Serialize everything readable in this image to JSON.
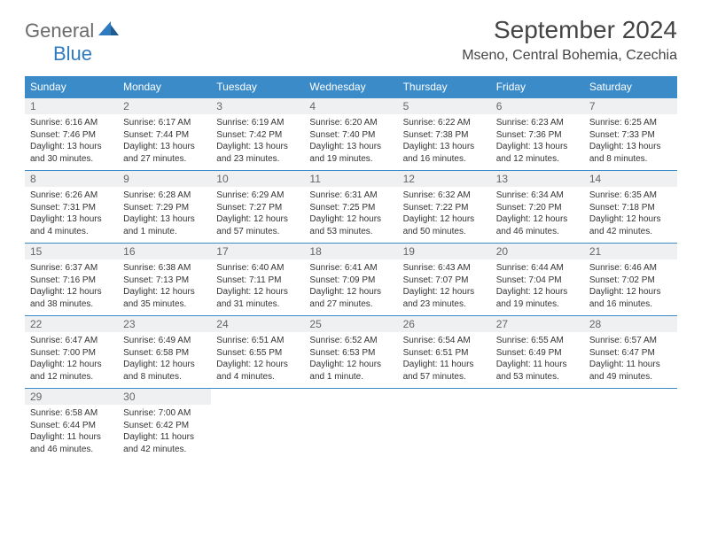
{
  "brand": {
    "part1": "General",
    "part2": "Blue"
  },
  "title": "September 2024",
  "location": "Mseno, Central Bohemia, Czechia",
  "colors": {
    "header_bg": "#3b8bc9",
    "header_text": "#ffffff",
    "daynum_bg": "#eef0f1",
    "border": "#3b8bc9",
    "brand_gray": "#6b6b6b",
    "brand_blue": "#2f7bbf"
  },
  "day_names": [
    "Sunday",
    "Monday",
    "Tuesday",
    "Wednesday",
    "Thursday",
    "Friday",
    "Saturday"
  ],
  "weeks": [
    [
      {
        "n": "1",
        "sunrise": "Sunrise: 6:16 AM",
        "sunset": "Sunset: 7:46 PM",
        "daylight": "Daylight: 13 hours and 30 minutes."
      },
      {
        "n": "2",
        "sunrise": "Sunrise: 6:17 AM",
        "sunset": "Sunset: 7:44 PM",
        "daylight": "Daylight: 13 hours and 27 minutes."
      },
      {
        "n": "3",
        "sunrise": "Sunrise: 6:19 AM",
        "sunset": "Sunset: 7:42 PM",
        "daylight": "Daylight: 13 hours and 23 minutes."
      },
      {
        "n": "4",
        "sunrise": "Sunrise: 6:20 AM",
        "sunset": "Sunset: 7:40 PM",
        "daylight": "Daylight: 13 hours and 19 minutes."
      },
      {
        "n": "5",
        "sunrise": "Sunrise: 6:22 AM",
        "sunset": "Sunset: 7:38 PM",
        "daylight": "Daylight: 13 hours and 16 minutes."
      },
      {
        "n": "6",
        "sunrise": "Sunrise: 6:23 AM",
        "sunset": "Sunset: 7:36 PM",
        "daylight": "Daylight: 13 hours and 12 minutes."
      },
      {
        "n": "7",
        "sunrise": "Sunrise: 6:25 AM",
        "sunset": "Sunset: 7:33 PM",
        "daylight": "Daylight: 13 hours and 8 minutes."
      }
    ],
    [
      {
        "n": "8",
        "sunrise": "Sunrise: 6:26 AM",
        "sunset": "Sunset: 7:31 PM",
        "daylight": "Daylight: 13 hours and 4 minutes."
      },
      {
        "n": "9",
        "sunrise": "Sunrise: 6:28 AM",
        "sunset": "Sunset: 7:29 PM",
        "daylight": "Daylight: 13 hours and 1 minute."
      },
      {
        "n": "10",
        "sunrise": "Sunrise: 6:29 AM",
        "sunset": "Sunset: 7:27 PM",
        "daylight": "Daylight: 12 hours and 57 minutes."
      },
      {
        "n": "11",
        "sunrise": "Sunrise: 6:31 AM",
        "sunset": "Sunset: 7:25 PM",
        "daylight": "Daylight: 12 hours and 53 minutes."
      },
      {
        "n": "12",
        "sunrise": "Sunrise: 6:32 AM",
        "sunset": "Sunset: 7:22 PM",
        "daylight": "Daylight: 12 hours and 50 minutes."
      },
      {
        "n": "13",
        "sunrise": "Sunrise: 6:34 AM",
        "sunset": "Sunset: 7:20 PM",
        "daylight": "Daylight: 12 hours and 46 minutes."
      },
      {
        "n": "14",
        "sunrise": "Sunrise: 6:35 AM",
        "sunset": "Sunset: 7:18 PM",
        "daylight": "Daylight: 12 hours and 42 minutes."
      }
    ],
    [
      {
        "n": "15",
        "sunrise": "Sunrise: 6:37 AM",
        "sunset": "Sunset: 7:16 PM",
        "daylight": "Daylight: 12 hours and 38 minutes."
      },
      {
        "n": "16",
        "sunrise": "Sunrise: 6:38 AM",
        "sunset": "Sunset: 7:13 PM",
        "daylight": "Daylight: 12 hours and 35 minutes."
      },
      {
        "n": "17",
        "sunrise": "Sunrise: 6:40 AM",
        "sunset": "Sunset: 7:11 PM",
        "daylight": "Daylight: 12 hours and 31 minutes."
      },
      {
        "n": "18",
        "sunrise": "Sunrise: 6:41 AM",
        "sunset": "Sunset: 7:09 PM",
        "daylight": "Daylight: 12 hours and 27 minutes."
      },
      {
        "n": "19",
        "sunrise": "Sunrise: 6:43 AM",
        "sunset": "Sunset: 7:07 PM",
        "daylight": "Daylight: 12 hours and 23 minutes."
      },
      {
        "n": "20",
        "sunrise": "Sunrise: 6:44 AM",
        "sunset": "Sunset: 7:04 PM",
        "daylight": "Daylight: 12 hours and 19 minutes."
      },
      {
        "n": "21",
        "sunrise": "Sunrise: 6:46 AM",
        "sunset": "Sunset: 7:02 PM",
        "daylight": "Daylight: 12 hours and 16 minutes."
      }
    ],
    [
      {
        "n": "22",
        "sunrise": "Sunrise: 6:47 AM",
        "sunset": "Sunset: 7:00 PM",
        "daylight": "Daylight: 12 hours and 12 minutes."
      },
      {
        "n": "23",
        "sunrise": "Sunrise: 6:49 AM",
        "sunset": "Sunset: 6:58 PM",
        "daylight": "Daylight: 12 hours and 8 minutes."
      },
      {
        "n": "24",
        "sunrise": "Sunrise: 6:51 AM",
        "sunset": "Sunset: 6:55 PM",
        "daylight": "Daylight: 12 hours and 4 minutes."
      },
      {
        "n": "25",
        "sunrise": "Sunrise: 6:52 AM",
        "sunset": "Sunset: 6:53 PM",
        "daylight": "Daylight: 12 hours and 1 minute."
      },
      {
        "n": "26",
        "sunrise": "Sunrise: 6:54 AM",
        "sunset": "Sunset: 6:51 PM",
        "daylight": "Daylight: 11 hours and 57 minutes."
      },
      {
        "n": "27",
        "sunrise": "Sunrise: 6:55 AM",
        "sunset": "Sunset: 6:49 PM",
        "daylight": "Daylight: 11 hours and 53 minutes."
      },
      {
        "n": "28",
        "sunrise": "Sunrise: 6:57 AM",
        "sunset": "Sunset: 6:47 PM",
        "daylight": "Daylight: 11 hours and 49 minutes."
      }
    ],
    [
      {
        "n": "29",
        "sunrise": "Sunrise: 6:58 AM",
        "sunset": "Sunset: 6:44 PM",
        "daylight": "Daylight: 11 hours and 46 minutes."
      },
      {
        "n": "30",
        "sunrise": "Sunrise: 7:00 AM",
        "sunset": "Sunset: 6:42 PM",
        "daylight": "Daylight: 11 hours and 42 minutes."
      },
      null,
      null,
      null,
      null,
      null
    ]
  ]
}
